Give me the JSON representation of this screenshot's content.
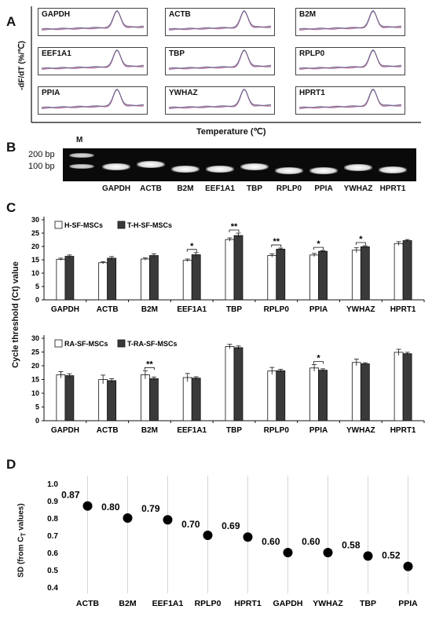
{
  "panel_a": {
    "letter": "A",
    "ylabel": "-dF/dT (%/℃)",
    "xlabel": "Temperature (℃)",
    "genes": [
      "GAPDH",
      "ACTB",
      "B2M",
      "EEF1A1",
      "TBP",
      "RPLP0",
      "PPIA",
      "YWHAZ",
      "HPRT1"
    ]
  },
  "panel_b": {
    "letter": "B",
    "marker_label": "M",
    "ladder": [
      "200 bp",
      "100 bp"
    ],
    "lanes": [
      "GAPDH",
      "ACTB",
      "B2M",
      "EEF1A1",
      "TBP",
      "RPLP0",
      "PPIA",
      "YWHAZ",
      "HPRT1"
    ]
  },
  "panel_c": {
    "letter": "C",
    "ylabel": "Cycle threshold (Ct) value"
  },
  "panel_d": {
    "letter": "D",
    "ylabel_main": "SD (from C",
    "ylabel_sub": "T",
    "ylabel_end": " values)"
  },
  "chart_data": [
    {
      "type": "bar",
      "categories": [
        "GAPDH",
        "ACTB",
        "B2M",
        "EEF1A1",
        "TBP",
        "RPLP0",
        "PPIA",
        "YWHAZ",
        "HPRT1"
      ],
      "ylim": [
        0,
        30
      ],
      "yticks": [
        0,
        5,
        10,
        15,
        20,
        25,
        30
      ],
      "series": [
        {
          "name": "H-SF-MSCs",
          "color": "#ffffff",
          "values": [
            15.2,
            13.9,
            15.3,
            14.8,
            22.6,
            16.6,
            16.8,
            18.6,
            21.1
          ],
          "errors": [
            0.4,
            0.4,
            0.4,
            0.5,
            0.6,
            0.6,
            0.6,
            0.9,
            0.7
          ]
        },
        {
          "name": "T-H-SF-MSCs",
          "color": "#3a3a3a",
          "values": [
            16.3,
            15.6,
            16.6,
            16.9,
            24.1,
            19.0,
            18.2,
            19.9,
            22.2
          ],
          "errors": [
            0.5,
            0.6,
            0.6,
            0.8,
            0.9,
            0.4,
            0.3,
            0.4,
            0.4
          ]
        }
      ],
      "significance": [
        {
          "category": "EEF1A1",
          "label": "*"
        },
        {
          "category": "TBP",
          "label": "**"
        },
        {
          "category": "RPLP0",
          "label": "**"
        },
        {
          "category": "PPIA",
          "label": "*"
        },
        {
          "category": "YWHAZ",
          "label": "*"
        }
      ]
    },
    {
      "type": "bar",
      "categories": [
        "GAPDH",
        "ACTB",
        "B2M",
        "EEF1A1",
        "TBP",
        "RPLP0",
        "PPIA",
        "YWHAZ",
        "HPRT1"
      ],
      "ylim": [
        0,
        30
      ],
      "yticks": [
        0,
        5,
        10,
        15,
        20,
        25,
        30
      ],
      "series": [
        {
          "name": "RA-SF-MSCs",
          "color": "#ffffff",
          "values": [
            16.7,
            15.0,
            16.7,
            15.7,
            27.0,
            18.1,
            19.2,
            21.2,
            24.9
          ],
          "errors": [
            1.2,
            1.6,
            1.5,
            1.5,
            0.8,
            1.3,
            1.2,
            1.2,
            1.1
          ]
        },
        {
          "name": "T-RA-SF-MSCs",
          "color": "#3a3a3a",
          "values": [
            16.4,
            14.6,
            15.3,
            15.5,
            26.6,
            18.2,
            18.4,
            20.7,
            24.4
          ],
          "errors": [
            0.7,
            0.7,
            0.6,
            0.5,
            0.6,
            0.5,
            0.5,
            0.4,
            0.5
          ]
        }
      ],
      "significance": [
        {
          "category": "B2M",
          "label": "**"
        },
        {
          "category": "PPIA",
          "label": "*"
        }
      ]
    },
    {
      "type": "scatter",
      "categories": [
        "ACTB",
        "B2M",
        "EEF1A1",
        "RPLP0",
        "HPRT1",
        "GAPDH",
        "YWHAZ",
        "TBP",
        "PPIA"
      ],
      "values": [
        0.87,
        0.8,
        0.79,
        0.7,
        0.69,
        0.6,
        0.6,
        0.58,
        0.52
      ],
      "labels": [
        "0.87",
        "0.80",
        "0.79",
        "0.70",
        "0.69",
        "0.60",
        "0.60",
        "0.58",
        "0.52"
      ],
      "ylim": [
        0.4,
        1.0
      ],
      "yticks": [
        "0.4",
        "0.5",
        "0.6",
        "0.7",
        "0.8",
        "0.9",
        "1.0"
      ],
      "grid": true
    }
  ]
}
